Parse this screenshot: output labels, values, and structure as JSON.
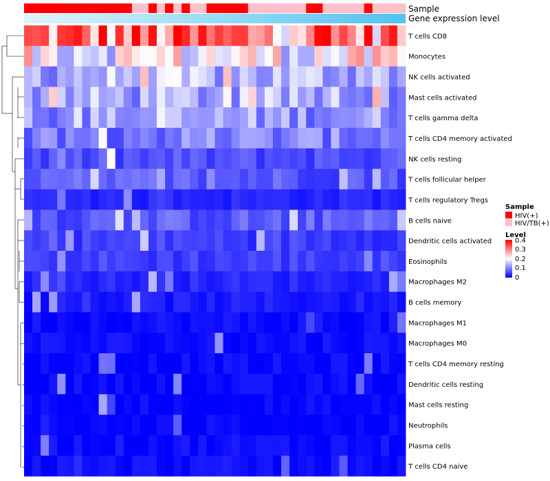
{
  "chart_data": {
    "type": "heatmap",
    "title": "",
    "annotation_tracks": [
      "Sample",
      "Gene expression level"
    ],
    "rows": [
      "T cells CD8",
      "Monocytes",
      "NK cells activated",
      "Mast cells activated",
      "T cells gamma delta",
      "T cells CD4 memory activated",
      "NK cells resting",
      "T cells follicular helper",
      "T cells regulatory  Tregs",
      "B cells naive",
      "Dendritic cells activated",
      "Eosinophils",
      "Macrophages M2",
      "B cells memory",
      "Macrophages M1",
      "Macrophages M0",
      "T cells CD4 memory resting",
      "Dendritic cells resting",
      "Mast cells resting",
      "Neutrophils",
      "Plasma cells",
      "T cells CD4 naive"
    ],
    "row_base_levels": [
      0.3,
      0.2,
      0.14,
      0.13,
      0.12,
      0.1,
      0.06,
      0.07,
      0.03,
      0.07,
      0.05,
      0.05,
      0.03,
      0.02,
      0.01,
      0.01,
      0.005,
      0.005,
      0.002,
      0.002,
      0.01,
      0.01
    ],
    "n_samples": 46,
    "sample_groups": [
      "HIV(+)",
      "HIV(+)",
      "HIV(+)",
      "HIV(+)",
      "HIV(+)",
      "HIV(+)",
      "HIV(+)",
      "HIV(+)",
      "HIV(+)",
      "HIV(+)",
      "HIV(+)",
      "HIV(+)",
      "HIV(+)",
      "HIV/TB(+)",
      "HIV/TB(+)",
      "HIV(+)",
      "HIV/TB(+)",
      "HIV(+)",
      "HIV/TB(+)",
      "HIV(+)",
      "HIV/TB(+)",
      "HIV/TB(+)",
      "HIV(+)",
      "HIV(+)",
      "HIV(+)",
      "HIV(+)",
      "HIV(+)",
      "HIV/TB(+)",
      "HIV/TB(+)",
      "HIV/TB(+)",
      "HIV/TB(+)",
      "HIV/TB(+)",
      "HIV/TB(+)",
      "HIV/TB(+)",
      "HIV(+)",
      "HIV(+)",
      "HIV/TB(+)",
      "HIV/TB(+)",
      "HIV/TB(+)",
      "HIV/TB(+)",
      "HIV/TB(+)",
      "HIV(+)",
      "HIV/TB(+)",
      "HIV/TB(+)",
      "HIV/TB(+)",
      "HIV/TB(+)"
    ],
    "legend": {
      "sample_title": "Sample",
      "sample_entries": [
        {
          "label": "HIV(+)",
          "color": "#ff0000"
        },
        {
          "label": "HIV/TB(+)",
          "color": "#ffc0cb"
        }
      ],
      "level_title": "Level",
      "level_ticks": [
        "0.4",
        "0.3",
        "0.2",
        "0.1",
        "0"
      ],
      "level_range": [
        0,
        0.4
      ],
      "colors": {
        "low": "#0000ff",
        "mid": "#ffffff",
        "high": "#ff0000"
      }
    },
    "gene_level_gradient": {
      "start": "#e0f4fc",
      "end": "#52c2ef"
    }
  }
}
